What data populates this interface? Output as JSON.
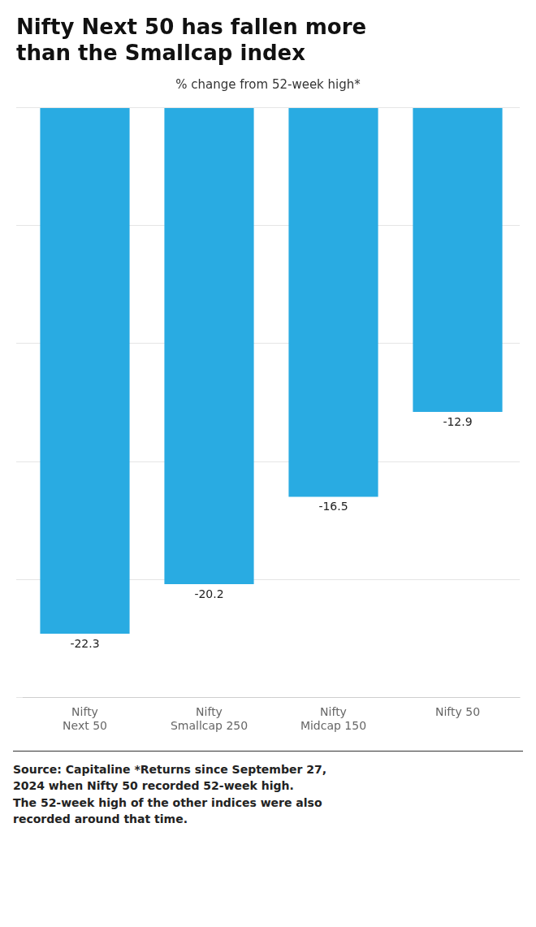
{
  "chart_data": {
    "type": "bar",
    "title": "Nifty Next 50 has fallen more\nthan the Smallcap index",
    "subtitle": "% change from 52-week high*",
    "categories": [
      "Nifty\nNext 50",
      "Nifty\nSmallcap 250",
      "Nifty\nMidcap 150",
      "Nifty 50"
    ],
    "values": [
      -22.3,
      -20.2,
      -16.5,
      -12.9
    ],
    "value_labels": [
      "-22.3",
      "-20.2",
      "-16.5",
      "-12.9"
    ],
    "color": "#29ABE2",
    "ylim": [
      -25,
      0
    ],
    "yticks": [
      0,
      -5,
      -10,
      -15,
      -20,
      -25
    ],
    "grid": true,
    "data_labels": true,
    "tick_labels": "x",
    "footnote": "Source: Capitaline  *Returns since September 27,\n2024 when Nifty 50 recorded 52-week high.\nThe 52-week high of the other indices were also\nrecorded around that time."
  }
}
